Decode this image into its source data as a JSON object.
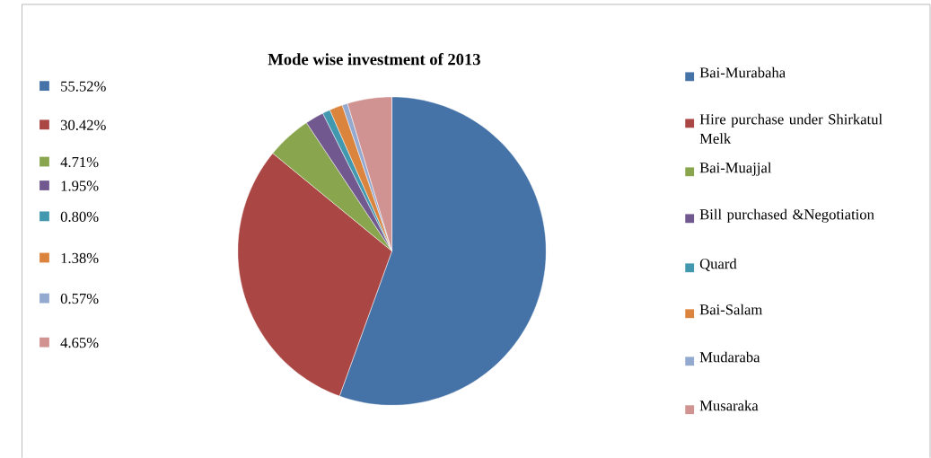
{
  "chart_data": {
    "type": "pie",
    "title": "Mode wise investment of 2013",
    "categories": [
      "Bai-Murabaha",
      "Hire purchase under Shirkatul Melk",
      "Bai-Muajjal",
      "Bill purchased &Negotiation",
      "Quard",
      "Bai-Salam",
      "Mudaraba",
      "Musaraka"
    ],
    "values": [
      55.52,
      30.42,
      4.71,
      1.95,
      0.8,
      1.38,
      0.57,
      4.65
    ],
    "annotations": [
      "55.52%",
      "30.42%",
      "4.71%",
      "1.95%",
      "0.80%",
      "1.38%",
      "0.57%",
      "4.65%"
    ],
    "colors": [
      "#4572a7",
      "#aa4643",
      "#89a54e",
      "#71588f",
      "#4198af",
      "#db843d",
      "#93a9cf",
      "#d19392"
    ],
    "legend": "right"
  }
}
